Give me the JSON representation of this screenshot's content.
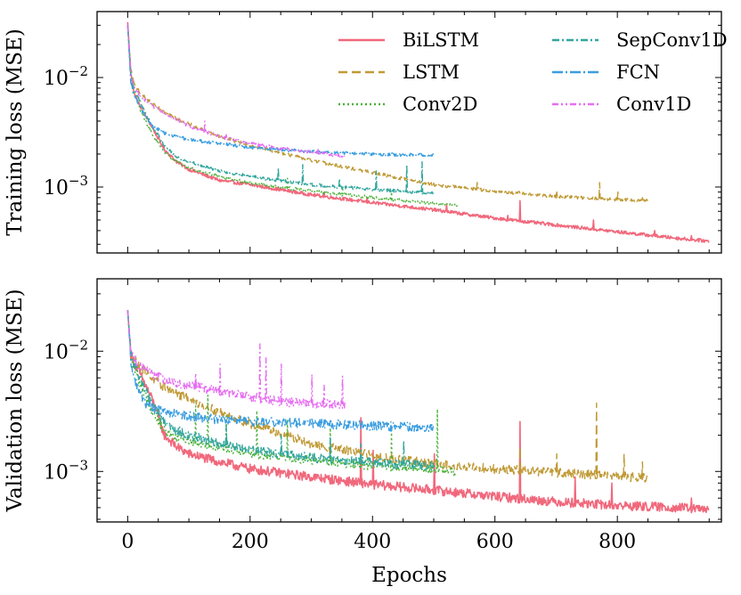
{
  "chart_data": [
    {
      "type": "line",
      "ylabel": "Training loss (MSE)",
      "xlabel": "",
      "yscale": "log",
      "xlim": [
        -50,
        970
      ],
      "ylim": [
        0.00025,
        0.04
      ],
      "xticks": [
        0,
        200,
        400,
        600,
        800
      ],
      "yticks": [
        {
          "value": 0.01,
          "base": "10",
          "exp": "−2"
        },
        {
          "value": 0.001,
          "base": "10",
          "exp": "−3"
        }
      ],
      "legend": {
        "position": "top-right",
        "columns": 2
      },
      "series": [
        {
          "name": "BiLSTM",
          "color": "#f1687c",
          "dash": "",
          "epochs": 950,
          "x": [
            0,
            5,
            10,
            20,
            40,
            60,
            80,
            100,
            150,
            200,
            300,
            400,
            500,
            600,
            700,
            800,
            900,
            950
          ],
          "y": [
            0.032,
            0.011,
            0.0075,
            0.0055,
            0.0035,
            0.0022,
            0.0017,
            0.00145,
            0.00115,
            0.00105,
            0.00085,
            0.00072,
            0.00062,
            0.00052,
            0.00045,
            0.00039,
            0.00034,
            0.00032
          ],
          "spikes": [
            [
              320,
              0.0009
            ],
            [
              390,
              0.0008
            ],
            [
              520,
              0.0007
            ],
            [
              620,
              0.00055
            ],
            [
              640,
              0.00075
            ],
            [
              760,
              0.0005
            ],
            [
              860,
              0.0004
            ],
            [
              920,
              0.00036
            ]
          ]
        },
        {
          "name": "LSTM",
          "color": "#c09a36",
          "dash": "10,5",
          "epochs": 850,
          "x": [
            0,
            5,
            10,
            20,
            40,
            60,
            80,
            100,
            150,
            200,
            300,
            400,
            500,
            600,
            700,
            800,
            850
          ],
          "y": [
            0.03,
            0.012,
            0.009,
            0.0072,
            0.0058,
            0.0048,
            0.0042,
            0.0038,
            0.0029,
            0.0024,
            0.00175,
            0.00135,
            0.00105,
            0.00092,
            0.00082,
            0.00077,
            0.00075
          ],
          "spikes": [
            [
              490,
              0.0011
            ],
            [
              570,
              0.0011
            ],
            [
              700,
              0.0009
            ],
            [
              770,
              0.0011
            ],
            [
              800,
              0.0009
            ],
            [
              840,
              0.0008
            ]
          ]
        },
        {
          "name": "Conv2D",
          "color": "#4bb23a",
          "dash": "2,3",
          "epochs": 540,
          "x": [
            0,
            5,
            10,
            20,
            40,
            60,
            80,
            100,
            150,
            200,
            300,
            400,
            500,
            540
          ],
          "y": [
            0.03,
            0.01,
            0.0072,
            0.0052,
            0.003,
            0.0021,
            0.0017,
            0.0015,
            0.00125,
            0.00108,
            0.00092,
            0.0008,
            0.00071,
            0.00068
          ],
          "spikes": [
            [
              260,
              0.0012
            ],
            [
              350,
              0.001
            ],
            [
              430,
              0.0009
            ]
          ]
        },
        {
          "name": "SepConv1D",
          "color": "#33a69d",
          "dash": "8,3,2,3",
          "epochs": 500,
          "x": [
            0,
            5,
            10,
            20,
            40,
            60,
            80,
            100,
            150,
            200,
            300,
            400,
            500
          ],
          "y": [
            0.03,
            0.0105,
            0.0078,
            0.006,
            0.0036,
            0.0024,
            0.0019,
            0.0017,
            0.0014,
            0.00125,
            0.00105,
            0.00095,
            0.00088
          ],
          "spikes": [
            [
              245,
              0.0015
            ],
            [
              285,
              0.0016
            ],
            [
              345,
              0.0012
            ],
            [
              405,
              0.0014
            ],
            [
              455,
              0.0016
            ],
            [
              480,
              0.0017
            ]
          ]
        },
        {
          "name": "FCN",
          "color": "#3b9ee0",
          "dash": "12,3,2,3",
          "epochs": 500,
          "x": [
            0,
            5,
            10,
            20,
            30,
            40,
            60,
            80,
            100,
            150,
            200,
            300,
            400,
            500
          ],
          "y": [
            0.03,
            0.009,
            0.007,
            0.0054,
            0.0043,
            0.0036,
            0.0031,
            0.0029,
            0.0027,
            0.0025,
            0.0023,
            0.0021,
            0.002,
            0.00195
          ],
          "spikes": []
        },
        {
          "name": "Conv1D",
          "color": "#e66df2",
          "dash": "7,3,2,3,2,3",
          "epochs": 355,
          "x": [
            0,
            5,
            10,
            20,
            40,
            60,
            80,
            100,
            150,
            200,
            250,
            300,
            355
          ],
          "y": [
            0.03,
            0.011,
            0.0085,
            0.0068,
            0.0055,
            0.0047,
            0.0041,
            0.0036,
            0.0029,
            0.0025,
            0.00225,
            0.0021,
            0.0019
          ],
          "spikes": [
            [
              125,
              0.004
            ],
            [
              160,
              0.003
            ],
            [
              310,
              0.0022
            ]
          ]
        }
      ]
    },
    {
      "type": "line",
      "ylabel": "Validation loss (MSE)",
      "xlabel": "Epochs",
      "yscale": "log",
      "xlim": [
        -50,
        970
      ],
      "ylim": [
        0.00038,
        0.04
      ],
      "xticks": [
        0,
        200,
        400,
        600,
        800
      ],
      "yticks": [
        {
          "value": 0.01,
          "base": "10",
          "exp": "−2"
        },
        {
          "value": 0.001,
          "base": "10",
          "exp": "−3"
        }
      ],
      "series": [
        {
          "name": "BiLSTM",
          "color": "#f1687c",
          "dash": "",
          "epochs": 950,
          "x": [
            0,
            5,
            10,
            20,
            40,
            60,
            80,
            100,
            150,
            200,
            300,
            400,
            500,
            600,
            700,
            800,
            900,
            950
          ],
          "y": [
            0.022,
            0.0095,
            0.008,
            0.0065,
            0.004,
            0.002,
            0.0016,
            0.0014,
            0.0012,
            0.00105,
            0.0009,
            0.00078,
            0.0007,
            0.00062,
            0.00056,
            0.00052,
            0.0005,
            0.00048
          ],
          "spikes": [
            [
              380,
              0.0028
            ],
            [
              400,
              0.0015
            ],
            [
              500,
              0.0014
            ],
            [
              640,
              0.0026
            ],
            [
              730,
              0.0009
            ],
            [
              790,
              0.0008
            ],
            [
              920,
              0.0006
            ]
          ]
        },
        {
          "name": "LSTM",
          "color": "#c09a36",
          "dash": "10,5",
          "epochs": 850,
          "x": [
            0,
            5,
            10,
            20,
            40,
            60,
            80,
            100,
            150,
            200,
            300,
            400,
            500,
            600,
            700,
            800,
            850
          ],
          "y": [
            0.022,
            0.01,
            0.0088,
            0.0074,
            0.006,
            0.005,
            0.0044,
            0.004,
            0.0031,
            0.0025,
            0.0017,
            0.00135,
            0.00115,
            0.00105,
            0.00098,
            0.00092,
            0.00088
          ],
          "spikes": [
            [
              640,
              0.0016
            ],
            [
              700,
              0.0014
            ],
            [
              765,
              0.0037
            ],
            [
              810,
              0.0014
            ],
            [
              840,
              0.0012
            ]
          ]
        },
        {
          "name": "Conv2D",
          "color": "#4bb23a",
          "dash": "2,3",
          "epochs": 535,
          "x": [
            0,
            5,
            10,
            20,
            40,
            60,
            80,
            100,
            150,
            200,
            300,
            400,
            500,
            535
          ],
          "y": [
            0.022,
            0.009,
            0.0075,
            0.0055,
            0.0032,
            0.0022,
            0.0019,
            0.0018,
            0.0016,
            0.0014,
            0.00125,
            0.00112,
            0.00105,
            0.001
          ],
          "spikes": [
            [
              110,
              0.0035
            ],
            [
              130,
              0.0043
            ],
            [
              160,
              0.003
            ],
            [
              210,
              0.0032
            ],
            [
              260,
              0.0027
            ],
            [
              330,
              0.0023
            ],
            [
              430,
              0.0022
            ],
            [
              505,
              0.0033
            ]
          ]
        },
        {
          "name": "SepConv1D",
          "color": "#33a69d",
          "dash": "8,3,2,3",
          "epochs": 500,
          "x": [
            0,
            5,
            10,
            20,
            40,
            60,
            80,
            100,
            150,
            200,
            300,
            400,
            500
          ],
          "y": [
            0.022,
            0.0098,
            0.008,
            0.006,
            0.0036,
            0.0026,
            0.0022,
            0.002,
            0.0017,
            0.0015,
            0.0013,
            0.0012,
            0.0011
          ],
          "spikes": [
            [
              160,
              0.0024
            ],
            [
              250,
              0.002
            ],
            [
              330,
              0.0019
            ],
            [
              380,
              0.0017
            ],
            [
              450,
              0.0018
            ]
          ]
        },
        {
          "name": "FCN",
          "color": "#3b9ee0",
          "dash": "12,3,2,3",
          "epochs": 500,
          "x": [
            0,
            5,
            10,
            20,
            30,
            40,
            60,
            80,
            100,
            150,
            200,
            300,
            400,
            500
          ],
          "y": [
            0.022,
            0.0085,
            0.006,
            0.0045,
            0.0037,
            0.0034,
            0.0031,
            0.003,
            0.0029,
            0.0027,
            0.0026,
            0.0025,
            0.0024,
            0.0023
          ],
          "spikes": []
        },
        {
          "name": "Conv1D",
          "color": "#e66df2",
          "dash": "7,3,2,3,2,3",
          "epochs": 355,
          "x": [
            0,
            5,
            10,
            20,
            40,
            60,
            80,
            100,
            150,
            200,
            250,
            300,
            355
          ],
          "y": [
            0.022,
            0.01,
            0.0088,
            0.0075,
            0.0065,
            0.0058,
            0.0054,
            0.0052,
            0.0046,
            0.0042,
            0.0038,
            0.0037,
            0.0036
          ],
          "spikes": [
            [
              110,
              0.0065
            ],
            [
              150,
              0.0078
            ],
            [
              215,
              0.0115
            ],
            [
              225,
              0.0088
            ],
            [
              250,
              0.0078
            ],
            [
              300,
              0.0064
            ],
            [
              320,
              0.0052
            ],
            [
              350,
              0.0062
            ]
          ]
        }
      ]
    }
  ]
}
